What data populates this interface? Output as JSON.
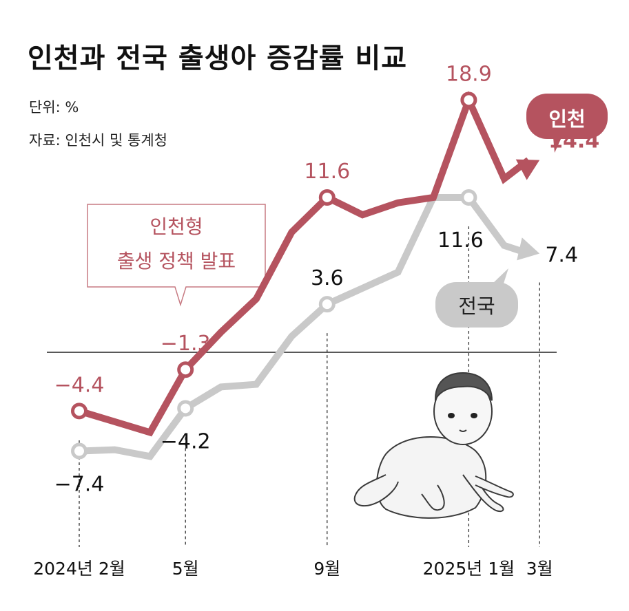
{
  "title": "인천과 전국 출생아 증감률 비교",
  "unit": "단위: %",
  "source": "자료: 인천시 및 통계청",
  "policy_callout": {
    "line1": "인천형",
    "line2": "출생 정책 발표"
  },
  "colors": {
    "incheon": "#b5535f",
    "national": "#c9c9c9",
    "text": "#111111",
    "callout_border": "#c77a82"
  },
  "chart_data": {
    "type": "line",
    "x": [
      "2024-02",
      "2024-03",
      "2024-04",
      "2024-05",
      "2024-06",
      "2024-07",
      "2024-08",
      "2024-09",
      "2024-10",
      "2024-11",
      "2024-12",
      "2025-01",
      "2025-02",
      "2025-03"
    ],
    "tick_labels": [
      {
        "x": "2024-02",
        "label": "2024년 2월"
      },
      {
        "x": "2024-05",
        "label": "5월"
      },
      {
        "x": "2024-09",
        "label": "9월"
      },
      {
        "x": "2025-01",
        "label": "2025년 1월"
      },
      {
        "x": "2025-03",
        "label": "3월"
      }
    ],
    "series": [
      {
        "name": "인천",
        "values": [
          -4.4,
          -5.2,
          -6.0,
          -1.3,
          1.5,
          4.0,
          9.0,
          11.6,
          10.3,
          11.2,
          11.6,
          18.9,
          13.0,
          14.4
        ],
        "labels": [
          {
            "x": "2024-02",
            "text": "−4.4"
          },
          {
            "x": "2024-05",
            "text": "−1.3"
          },
          {
            "x": "2024-09",
            "text": "11.6"
          },
          {
            "x": "2025-01",
            "text": "18.9"
          },
          {
            "x": "2025-03",
            "text": "14.4"
          }
        ]
      },
      {
        "name": "전국",
        "values": [
          -7.4,
          -7.3,
          -7.8,
          -4.2,
          -2.6,
          -2.4,
          1.2,
          3.6,
          4.8,
          6.0,
          11.6,
          11.6,
          8.0,
          7.4
        ],
        "labels": [
          {
            "x": "2024-02",
            "text": "−7.4"
          },
          {
            "x": "2024-05",
            "text": "−4.2"
          },
          {
            "x": "2024-09",
            "text": "3.6"
          },
          {
            "x": "2025-01",
            "text": "11.6"
          },
          {
            "x": "2025-03",
            "text": "7.4"
          }
        ]
      }
    ],
    "ylim": [
      -8,
      20
    ],
    "grid": false,
    "baseline": 0
  }
}
